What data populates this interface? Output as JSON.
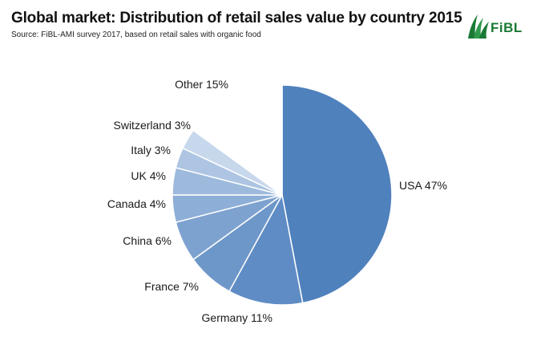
{
  "header": {
    "title": "Global market: Distribution of retail sales value by country 2015",
    "source": "Source: FiBL-AMI survey 2017, based on retail sales with organic food"
  },
  "logo": {
    "text": "FiBL",
    "color": "#1a7a35"
  },
  "chart_data": {
    "type": "pie",
    "title": "Global market: Distribution of retail sales value by country 2015",
    "slices": [
      {
        "label": "USA 47%",
        "value": 47,
        "color": "#4f81bd"
      },
      {
        "label": "Germany 11%",
        "value": 11,
        "color": "#5f8cc4"
      },
      {
        "label": "France 7%",
        "value": 7,
        "color": "#6e97c9"
      },
      {
        "label": "China 6%",
        "value": 6,
        "color": "#7ea2cf"
      },
      {
        "label": "Canada 4%",
        "value": 4,
        "color": "#8daed6"
      },
      {
        "label": "UK 4%",
        "value": 4,
        "color": "#9dbadc"
      },
      {
        "label": "Italy 3%",
        "value": 3,
        "color": "#adc5e2"
      },
      {
        "label": "Switzerland 3%",
        "value": 3,
        "color": "#c7d7ec"
      },
      {
        "label": "Other 15%",
        "value": 15,
        "color": "#ffffff"
      }
    ],
    "start": "12 o'clock",
    "direction": "clockwise",
    "legend": "none"
  }
}
